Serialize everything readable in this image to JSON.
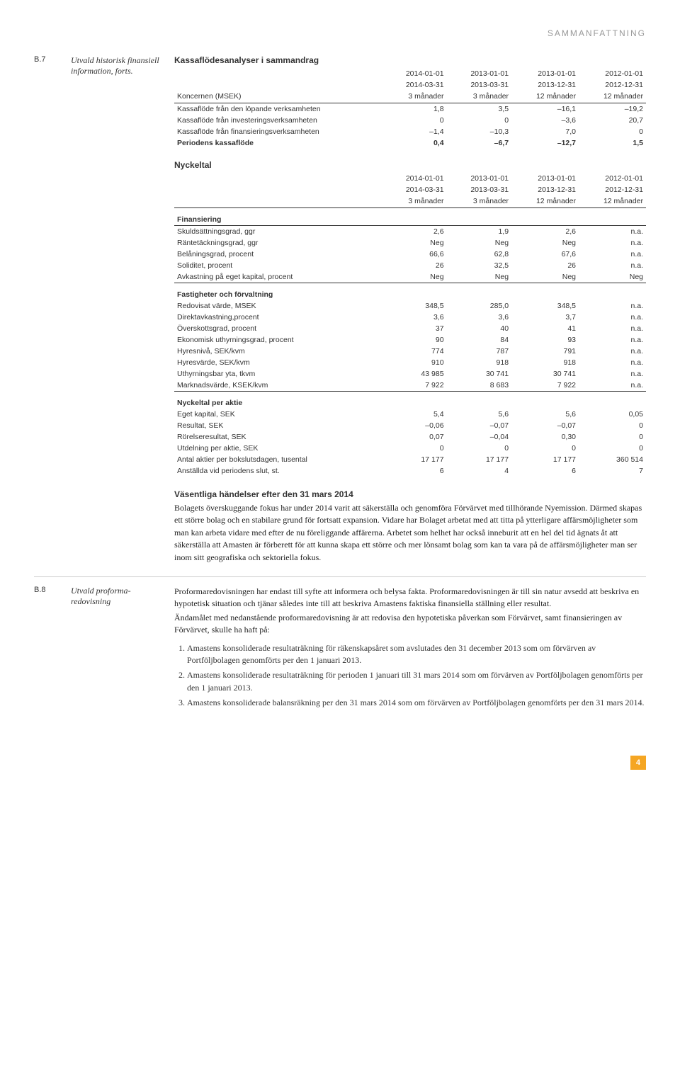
{
  "header": {
    "title": "SAMMANFATTNING"
  },
  "sectionB7": {
    "code": "B.7",
    "label": "Utvald historisk finansiell information, forts.",
    "kf_title": "Kassaflödesanalyser i sammandrag",
    "kf_headers": {
      "label": "Koncernen (MSEK)",
      "c1a": "2014-01-01",
      "c1b": "2014-03-31",
      "c2a": "2013-01-01",
      "c2b": "2013-03-31",
      "c3a": "2013-01-01",
      "c3b": "2013-12-31",
      "c4a": "2012-01-01",
      "c4b": "2012-12-31",
      "s1": "3 månader",
      "s2": "3 månader",
      "s3": "12 månader",
      "s4": "12 månader"
    },
    "kf_rows": [
      {
        "l": "Kassaflöde från den löpande verksamheten",
        "v": [
          "1,8",
          "3,5",
          "–16,1",
          "–19,2"
        ]
      },
      {
        "l": "Kassaflöde från investeringsverksamheten",
        "v": [
          "0",
          "0",
          "–3,6",
          "20,7"
        ]
      },
      {
        "l": "Kassaflöde från finansieringsverksamheten",
        "v": [
          "–1,4",
          "–10,3",
          "7,0",
          "0"
        ]
      },
      {
        "l": "Periodens kassaflöde",
        "v": [
          "0,4",
          "–6,7",
          "–12,7",
          "1,5"
        ],
        "bold": true
      }
    ],
    "ny_title": "Nyckeltal",
    "ny_headers": {
      "c1a": "2014-01-01",
      "c1b": "2014-03-31",
      "c2a": "2013-01-01",
      "c2b": "2013-03-31",
      "c3a": "2013-01-01",
      "c3b": "2013-12-31",
      "c4a": "2012-01-01",
      "c4b": "2012-12-31",
      "s1": "3 månader",
      "s2": "3 månader",
      "s3": "12 månader",
      "s4": "12 månader"
    },
    "ny_groups": [
      {
        "title": "Finansiering",
        "rows": [
          {
            "l": "Skuldsättningsgrad, ggr",
            "v": [
              "2,6",
              "1,9",
              "2,6",
              "n.a."
            ]
          },
          {
            "l": "Räntetäckningsgrad, ggr",
            "v": [
              "Neg",
              "Neg",
              "Neg",
              "n.a."
            ]
          },
          {
            "l": "Belåningsgrad, procent",
            "v": [
              "66,6",
              "62,8",
              "67,6",
              "n.a."
            ]
          },
          {
            "l": "Soliditet, procent",
            "v": [
              "26",
              "32,5",
              "26",
              "n.a."
            ]
          },
          {
            "l": "Avkastning på eget kapital, procent",
            "v": [
              "Neg",
              "Neg",
              "Neg",
              "Neg"
            ]
          }
        ]
      },
      {
        "title": "Fastigheter och förvaltning",
        "rows": [
          {
            "l": "Redovisat värde, MSEK",
            "v": [
              "348,5",
              "285,0",
              "348,5",
              "n.a."
            ]
          },
          {
            "l": "Direktavkastning,procent",
            "v": [
              "3,6",
              "3,6",
              "3,7",
              "n.a."
            ]
          },
          {
            "l": "Överskottsgrad, procent",
            "v": [
              "37",
              "40",
              "41",
              "n.a."
            ]
          },
          {
            "l": "Ekonomisk uthyrningsgrad, procent",
            "v": [
              "90",
              "84",
              "93",
              "n.a."
            ]
          },
          {
            "l": "Hyresnivå, SEK/kvm",
            "v": [
              "774",
              "787",
              "791",
              "n.a."
            ]
          },
          {
            "l": "Hyresvärde, SEK/kvm",
            "v": [
              "910",
              "918",
              "918",
              "n.a."
            ]
          },
          {
            "l": "Uthyrningsbar yta, tkvm",
            "v": [
              "43 985",
              "30 741",
              "30 741",
              "n.a."
            ]
          },
          {
            "l": "Marknadsvärde, KSEK/kvm",
            "v": [
              "7 922",
              "8 683",
              "7 922",
              "n.a."
            ]
          }
        ]
      },
      {
        "title": "Nyckeltal per aktie",
        "rows": [
          {
            "l": "Eget kapital, SEK",
            "v": [
              "5,4",
              "5,6",
              "5,6",
              "0,05"
            ]
          },
          {
            "l": "Resultat, SEK",
            "v": [
              "–0,06",
              "–0,07",
              "–0,07",
              "0"
            ]
          },
          {
            "l": "Rörelseresultat, SEK",
            "v": [
              "0,07",
              "–0,04",
              "0,30",
              "0"
            ]
          },
          {
            "l": "Utdelning per aktie, SEK",
            "v": [
              "0",
              "0",
              "0",
              "0"
            ]
          },
          {
            "l": "Antal aktier per bokslutsdagen, tusental",
            "v": [
              "17 177",
              "17 177",
              "17 177",
              "360 514"
            ]
          },
          {
            "l": "Anställda vid periodens slut, st.",
            "v": [
              "6",
              "4",
              "6",
              "7"
            ]
          }
        ]
      }
    ],
    "events_title": "Väsentliga händelser efter den 31 mars 2014",
    "events_para": "Bolagets överskuggande fokus har under 2014 varit att säkerställa och genomföra Förvärvet med tillhörande Nyemission. Därmed skapas ett större bolag och en stabilare grund för fortsatt expansion. Vidare har Bolaget arbetat med att titta på ytterligare affärsmöjligheter som man kan arbeta vidare med efter de nu föreliggande affärerna. Arbetet som helhet har också inneburit att en hel del tid ägnats åt att säkerställa att Amasten är förberett för att kunna skapa ett större och mer lönsamt bolag som kan ta vara på de affärsmöjligheter man ser inom sitt geografiska och sektoriella fokus."
  },
  "sectionB8": {
    "code": "B.8",
    "label": "Utvald proforma­redovisning",
    "para1": "Proformaredovisningen har endast till syfte att informera och belysa fakta. Proformaredovisningen är till sin natur avsedd att beskriva en hypotetisk situation och tjänar således inte till att beskriva Amastens faktiska finansiella ställning eller resultat.",
    "para2": "Ändamålet med nedanstående proformaredovisning är att redovisa den hypotetiska påverkan som Förvärvet, samt finansieringen av Förvärvet, skulle ha haft på:",
    "list": [
      "Amastens konsoliderade resultaträkning för räkenskapsåret som avslutades den 31 december 2013 som om förvärven av Portföljbolagen genomförts per den 1 januari 2013.",
      "Amastens konsoliderade resultaträkning för perioden 1 januari till 31 mars 2014 som om förvärven av Portföljbolagen genomförts per den 1 januari 2013.",
      "Amastens konsoliderade balansräkning per den 31 mars 2014 som om förvärven av Portföljbolagen genomförts per den 31 mars 2014."
    ]
  },
  "footer": {
    "page": "4"
  }
}
